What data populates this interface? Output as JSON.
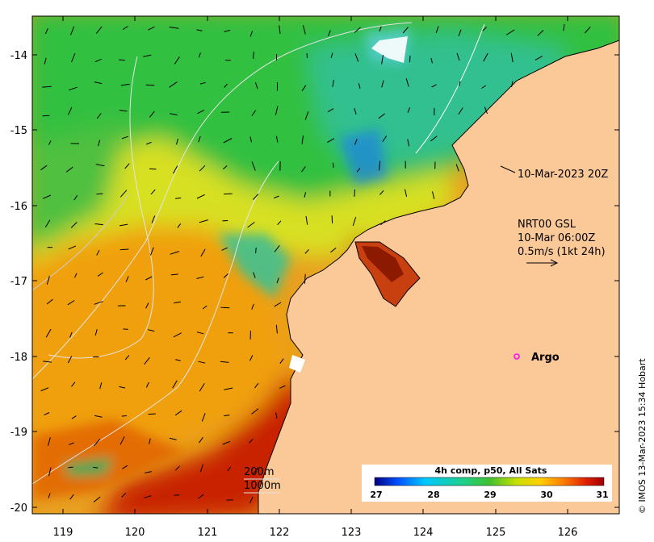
{
  "map": {
    "x_ticks": [
      "119",
      "120",
      "121",
      "122",
      "123",
      "124",
      "125",
      "126"
    ],
    "y_ticks": [
      "-14",
      "-15",
      "-16",
      "-17",
      "-18",
      "-19",
      "-20"
    ]
  },
  "annotations": {
    "time_label": "10-Mar-2023 20Z",
    "current_model": "NRT00 GSL",
    "current_time": "10-Mar 06:00Z",
    "current_scale": "0.5m/s (1kt 24h)",
    "argo_label": "Argo",
    "depth_contour_1": "200m",
    "depth_contour_2": "1000m",
    "credit": "© IMOS 13-Mar-2023 15:34 Hobart"
  },
  "colorbar": {
    "title": "4h comp, p50, All Sats",
    "ticks": [
      "27",
      "28",
      "29",
      "30",
      "31"
    ],
    "colors": [
      "#00007f",
      "#0050ff",
      "#00c8ff",
      "#20d080",
      "#40c030",
      "#c8e000",
      "#ffd000",
      "#ff8000",
      "#e02000",
      "#a00000"
    ]
  },
  "colors": {
    "land": "#fbc898",
    "land_edge": "#000000",
    "contour": "#dcdcdc",
    "argo_marker": "#ff00ff"
  }
}
